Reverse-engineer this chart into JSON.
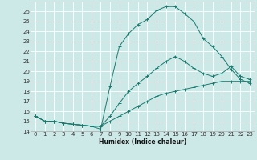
{
  "title": "",
  "xlabel": "Humidex (Indice chaleur)",
  "bg_color": "#cce9e8",
  "grid_color": "#ffffff",
  "line_color": "#1a7a6e",
  "xlim": [
    -0.5,
    23.5
  ],
  "ylim": [
    14,
    27
  ],
  "xticks": [
    0,
    1,
    2,
    3,
    4,
    5,
    6,
    7,
    8,
    9,
    10,
    11,
    12,
    13,
    14,
    15,
    16,
    17,
    18,
    19,
    20,
    21,
    22,
    23
  ],
  "yticks": [
    14,
    15,
    16,
    17,
    18,
    19,
    20,
    21,
    22,
    23,
    24,
    25,
    26
  ],
  "curve1_x": [
    0,
    1,
    2,
    3,
    4,
    5,
    6,
    7,
    8,
    9,
    10,
    11,
    12,
    13,
    14,
    15,
    16,
    17,
    18,
    19,
    20,
    21,
    22,
    23
  ],
  "curve1_y": [
    15.5,
    15.0,
    15.0,
    14.8,
    14.7,
    14.6,
    14.5,
    14.2,
    18.5,
    22.5,
    23.8,
    24.7,
    25.2,
    26.1,
    26.5,
    26.5,
    25.8,
    25.0,
    23.3,
    22.5,
    21.5,
    20.2,
    19.2,
    18.8
  ],
  "curve2_x": [
    0,
    1,
    2,
    3,
    4,
    5,
    6,
    7,
    8,
    9,
    10,
    11,
    12,
    13,
    14,
    15,
    16,
    17,
    18,
    19,
    20,
    21,
    22,
    23
  ],
  "curve2_y": [
    15.5,
    15.0,
    15.0,
    14.8,
    14.7,
    14.6,
    14.5,
    14.5,
    15.5,
    16.8,
    18.0,
    18.8,
    19.5,
    20.3,
    21.0,
    21.5,
    21.0,
    20.3,
    19.8,
    19.5,
    19.8,
    20.5,
    19.5,
    19.2
  ],
  "curve3_x": [
    0,
    1,
    2,
    3,
    4,
    5,
    6,
    7,
    8,
    9,
    10,
    11,
    12,
    13,
    14,
    15,
    16,
    17,
    18,
    19,
    20,
    21,
    22,
    23
  ],
  "curve3_y": [
    15.5,
    15.0,
    15.0,
    14.8,
    14.7,
    14.6,
    14.5,
    14.5,
    15.0,
    15.5,
    16.0,
    16.5,
    17.0,
    17.5,
    17.8,
    18.0,
    18.2,
    18.4,
    18.6,
    18.8,
    19.0,
    19.0,
    19.0,
    19.0
  ]
}
